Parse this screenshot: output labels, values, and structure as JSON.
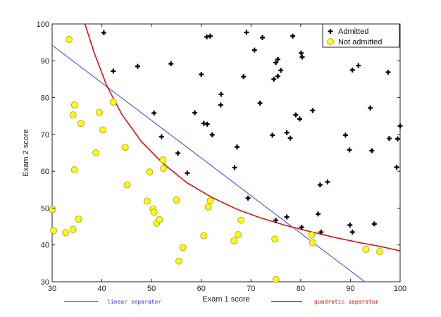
{
  "chart_data": {
    "type": "scatter",
    "title": "",
    "xlabel": "Exam 1 score",
    "ylabel": "Exam 2 score",
    "xlim": [
      30,
      100
    ],
    "ylim": [
      30,
      100
    ],
    "xticks": [
      30,
      40,
      50,
      60,
      70,
      80,
      90,
      100
    ],
    "yticks": [
      30,
      40,
      50,
      60,
      70,
      80,
      90,
      100
    ],
    "grid": false,
    "legend": {
      "placement": "top-right",
      "entries": [
        {
          "label": "Admitted",
          "marker": "plus",
          "color": "#000000"
        },
        {
          "label": "Not admitted",
          "marker": "circle",
          "color": "#ffff00"
        }
      ]
    },
    "series": [
      {
        "name": "Admitted",
        "marker": "plus",
        "color": "#000000",
        "points": [
          [
            40.4,
            97.6
          ],
          [
            42.3,
            87.2
          ],
          [
            47.2,
            88.5
          ],
          [
            53.9,
            89.2
          ],
          [
            61.1,
            96.5
          ],
          [
            61.8,
            96.7
          ],
          [
            69.1,
            97.7
          ],
          [
            70.7,
            92.9
          ],
          [
            72.3,
            96.3
          ],
          [
            78.4,
            96.7
          ],
          [
            80.1,
            92.1
          ],
          [
            80.3,
            91.0
          ],
          [
            60.0,
            86.3
          ],
          [
            68.5,
            85.7
          ],
          [
            75.0,
            89.5
          ],
          [
            75.4,
            90.4
          ],
          [
            74.6,
            85.0
          ],
          [
            75.4,
            85.8
          ],
          [
            76.0,
            87.4
          ],
          [
            94.0,
            77.2
          ],
          [
            90.4,
            87.5
          ],
          [
            91.6,
            88.7
          ],
          [
            97.6,
            86.9
          ],
          [
            64.0,
            80.9
          ],
          [
            63.9,
            78.0
          ],
          [
            71.8,
            78.5
          ],
          [
            50.5,
            75.8
          ],
          [
            58.7,
            75.9
          ],
          [
            60.5,
            73.0
          ],
          [
            61.2,
            72.8
          ],
          [
            79.0,
            75.3
          ],
          [
            79.8,
            74.2
          ],
          [
            82.4,
            76.5
          ],
          [
            62.2,
            69.9
          ],
          [
            52.0,
            69.4
          ],
          [
            74.3,
            69.8
          ],
          [
            77.2,
            70.5
          ],
          [
            77.9,
            69.0
          ],
          [
            97.8,
            68.9
          ],
          [
            99.5,
            68.8
          ],
          [
            100.0,
            72.3
          ],
          [
            89.0,
            69.8
          ],
          [
            67.2,
            66.6
          ],
          [
            55.3,
            64.9
          ],
          [
            89.8,
            65.8
          ],
          [
            94.3,
            65.6
          ],
          [
            66.7,
            61.0
          ],
          [
            57.2,
            59.5
          ],
          [
            99.3,
            61.1
          ],
          [
            83.9,
            56.3
          ],
          [
            85.4,
            57.1
          ],
          [
            69.4,
            52.7
          ],
          [
            75.0,
            46.7
          ],
          [
            77.2,
            47.6
          ],
          [
            80.2,
            44.8
          ],
          [
            83.5,
            48.4
          ],
          [
            84.1,
            43.5
          ],
          [
            89.9,
            45.4
          ],
          [
            90.4,
            43.5
          ],
          [
            94.8,
            45.7
          ]
        ]
      },
      {
        "name": "Not admitted",
        "marker": "circle",
        "color": "#ffff00",
        "points": [
          [
            33.4,
            95.8
          ],
          [
            42.3,
            78.8
          ],
          [
            34.5,
            78.0
          ],
          [
            34.2,
            75.3
          ],
          [
            39.5,
            76.0
          ],
          [
            35.8,
            73.0
          ],
          [
            40.2,
            71.2
          ],
          [
            44.7,
            66.5
          ],
          [
            38.8,
            65.0
          ],
          [
            52.3,
            63.1
          ],
          [
            52.4,
            60.8
          ],
          [
            34.5,
            60.4
          ],
          [
            49.6,
            59.8
          ],
          [
            45.1,
            56.3
          ],
          [
            61.8,
            52.0
          ],
          [
            55.0,
            52.2
          ],
          [
            30.1,
            49.6
          ],
          [
            61.4,
            50.3
          ],
          [
            50.3,
            49.8
          ],
          [
            50.5,
            48.9
          ],
          [
            49.1,
            51.9
          ],
          [
            68.0,
            46.7
          ],
          [
            30.3,
            43.9
          ],
          [
            32.7,
            43.3
          ],
          [
            34.2,
            44.2
          ],
          [
            35.3,
            47.0
          ],
          [
            51.0,
            45.9
          ],
          [
            51.6,
            46.9
          ],
          [
            60.5,
            42.5
          ],
          [
            66.6,
            41.1
          ],
          [
            67.4,
            42.8
          ],
          [
            74.8,
            41.6
          ],
          [
            82.2,
            42.7
          ],
          [
            82.4,
            40.6
          ],
          [
            56.3,
            39.3
          ],
          [
            55.5,
            35.6
          ],
          [
            93.1,
            38.8
          ],
          [
            95.9,
            38.2
          ],
          [
            75.0,
            30.6
          ]
        ]
      }
    ],
    "decision_boundaries": [
      {
        "name": "linear separator",
        "color": "#3b3bff",
        "type": "line",
        "points": [
          [
            30,
            94.2
          ],
          [
            92.9,
            30
          ]
        ]
      },
      {
        "name": "quadratic separator",
        "color": "#e01010",
        "type": "curve",
        "points": [
          [
            36.6,
            100
          ],
          [
            38.5,
            92
          ],
          [
            41.0,
            83.2
          ],
          [
            44.0,
            75.5
          ],
          [
            48.0,
            68.0
          ],
          [
            52.0,
            62.5
          ],
          [
            57.0,
            57.0
          ],
          [
            62.0,
            53.0
          ],
          [
            67.0,
            49.8
          ],
          [
            72.0,
            47.3
          ],
          [
            77.0,
            45.3
          ],
          [
            82.0,
            43.6
          ],
          [
            87.0,
            42.0
          ],
          [
            92.0,
            40.6
          ],
          [
            96.0,
            39.6
          ],
          [
            100.0,
            38.4
          ]
        ]
      }
    ],
    "annotations": [
      {
        "text": "linear separator",
        "color": "#3b3bff"
      },
      {
        "text": "quadratic separator",
        "color": "#e01010"
      }
    ]
  }
}
